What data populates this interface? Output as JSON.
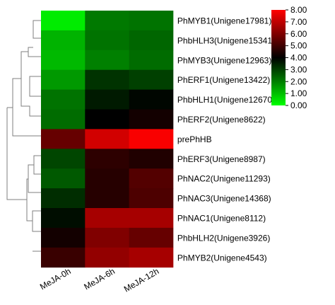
{
  "chart_data": {
    "type": "heatmap",
    "columns": [
      "MeJA-0h",
      "MeJA-6h",
      "MeJA-12h"
    ],
    "rows": [
      "PhMYB1(Unigene17981)",
      "PhbHLH3(Unigene15341)",
      "PhMYB3(Unigene12963)",
      "PhERF1(Unigene13422)",
      "PhbHLH1(Unigene12670)",
      "PhERF2(Unigene8622)",
      "prePhHB",
      "PhERF3(Unigene8987)",
      "PhNAC2(Unigene11293)",
      "PhNAC3(Unigene14368)",
      "PhNAC1(Unigene8112)",
      "PhbHLH2(Unigene3926)",
      "PhMYB2(Unigene4543)"
    ],
    "values": [
      [
        0.3,
        2.1,
        2.2
      ],
      [
        1.2,
        2.2,
        2.4
      ],
      [
        1.1,
        2.0,
        2.3
      ],
      [
        1.6,
        3.2,
        3.0
      ],
      [
        2.2,
        3.6,
        3.9
      ],
      [
        2.3,
        4.0,
        4.3
      ],
      [
        5.6,
        7.3,
        7.9
      ],
      [
        2.9,
        4.7,
        4.5
      ],
      [
        2.6,
        4.6,
        5.3
      ],
      [
        3.3,
        4.6,
        5.2
      ],
      [
        3.8,
        6.6,
        6.6
      ],
      [
        4.3,
        6.0,
        5.6
      ],
      [
        4.9,
        6.3,
        6.6
      ]
    ],
    "color_scale": {
      "min": 0,
      "max": 8,
      "mid": 4,
      "low_color": "#00ff00",
      "mid_color": "#000000",
      "high_color": "#ff0000",
      "ticks": [
        "0.00",
        "1.00",
        "2.00",
        "3.00",
        "4.00",
        "5.00",
        "6.00",
        "7.00",
        "8.00"
      ]
    },
    "row_dendrogram": "left",
    "legend_position": "top-right"
  }
}
